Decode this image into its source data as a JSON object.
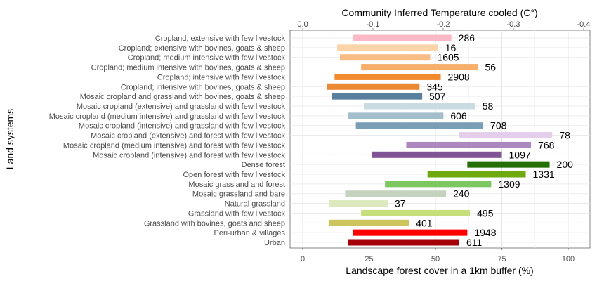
{
  "chart_data": {
    "type": "bar",
    "orientation": "horizontal-range",
    "xlabel": "Landscape forest cover in a 1km buffer (%)",
    "ylabel": "Land systems",
    "top_axis_label": "Community Inferred Temperature cooled (C°)",
    "xlim": [
      0,
      100
    ],
    "x_ticks": [
      "0",
      "25",
      "50",
      "75",
      "100"
    ],
    "top_ticks": [
      "0.0",
      "-0.1",
      "-0.2",
      "-0.3",
      "-0.4"
    ],
    "grid": true,
    "categories": [
      "Cropland; extensive with few livestock",
      "Cropland; extensive with bovines, goats & sheep",
      "Cropland; medium intensive with few livestock",
      "Cropland; medium intensive with bovines, goats & sheep",
      "Cropland; intensive with few livestock",
      "Cropland; intensive with bovines, goats & sheep",
      "Mosaic cropland and grassland with bovines, goats & sheep",
      "Mosaic cropland (extensive) and grassland with few livestock",
      "Mosaic cropland (medium intensive) and grassland with few livestock",
      "Mosaic cropland (intensive) and grassland with few livestock",
      "Mosaic cropland (extensive) and forest with few livestock",
      "Mosaic cropland (medium intensive) and forest with few livestock",
      "Mosaic cropland (intensive) and forest with few livestock",
      "Dense forest",
      "Open forest with few livestock",
      "Mosaic grassland and forest",
      "Mosaic grassland and bare",
      "Natural grassland",
      "Grassland with few livestock",
      "Grassland with bovines, goats and sheep",
      "Peri-urban & villages",
      "Urban"
    ],
    "ranges": [
      {
        "start": 19,
        "end": 56,
        "label": "286",
        "color": "#FBB9C6"
      },
      {
        "start": 13,
        "end": 51,
        "label": "16",
        "color": "#FCD4A8"
      },
      {
        "start": 14,
        "end": 48,
        "label": "1605",
        "color": "#F9BC85"
      },
      {
        "start": 22,
        "end": 66,
        "label": "56",
        "color": "#F6AE6A"
      },
      {
        "start": 12,
        "end": 52,
        "label": "2908",
        "color": "#F28B30"
      },
      {
        "start": 9,
        "end": 44,
        "label": "345",
        "color": "#EC8A33"
      },
      {
        "start": 11,
        "end": 45,
        "label": "507",
        "color": "#58809E"
      },
      {
        "start": 23,
        "end": 65,
        "label": "58",
        "color": "#CADBE1"
      },
      {
        "start": 17,
        "end": 53,
        "label": "606",
        "color": "#A5BECB"
      },
      {
        "start": 20,
        "end": 68,
        "label": "708",
        "color": "#7A9EB5"
      },
      {
        "start": 59,
        "end": 94,
        "label": "78",
        "color": "#E4CEEB"
      },
      {
        "start": 39,
        "end": 86,
        "label": "768",
        "color": "#AC88BE"
      },
      {
        "start": 26,
        "end": 75,
        "label": "1097",
        "color": "#7F5394"
      },
      {
        "start": 62,
        "end": 93,
        "label": "200",
        "color": "#246F06"
      },
      {
        "start": 47,
        "end": 84,
        "label": "1331",
        "color": "#6EA90E"
      },
      {
        "start": 31,
        "end": 71,
        "label": "1309",
        "color": "#7CC75F"
      },
      {
        "start": 16,
        "end": 54,
        "label": "240",
        "color": "#C4D3BE"
      },
      {
        "start": 10,
        "end": 32,
        "label": "37",
        "color": "#DCE9BE"
      },
      {
        "start": 22,
        "end": 63,
        "label": "495",
        "color": "#C6DF7C"
      },
      {
        "start": 10,
        "end": 40,
        "label": "401",
        "color": "#CCC55E"
      },
      {
        "start": 19,
        "end": 62,
        "label": "1948",
        "color": "#FF0000"
      },
      {
        "start": 17,
        "end": 59,
        "label": "611",
        "color": "#A30008"
      }
    ]
  }
}
